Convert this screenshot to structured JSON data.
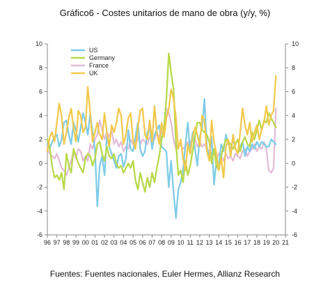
{
  "title": "Gráfico6 - Costes unitarios de mano de obra (y/y, %)",
  "source": "Fuentes: Fuentes nacionales, Euler Hermes, Allianz Research",
  "chart_data": {
    "type": "line",
    "x_tick_labels": [
      "96",
      "97",
      "98",
      "99",
      "00",
      "01",
      "02",
      "03",
      "04",
      "05",
      "06",
      "07",
      "08",
      "09",
      "10",
      "11",
      "12",
      "13",
      "14",
      "15",
      "16",
      "17",
      "18",
      "19",
      "20",
      "21"
    ],
    "y_ticks": [
      10,
      8,
      6,
      4,
      2,
      0,
      -2,
      -4,
      -6
    ],
    "ylim": [
      -6,
      10
    ],
    "xlim": [
      1996,
      2021
    ],
    "grid": false,
    "legend_position": "top-left",
    "series": [
      {
        "name": "US",
        "color": "#7FCCE8",
        "x": [
          1996,
          1996.25,
          1996.5,
          1996.75,
          1997,
          1997.25,
          1997.5,
          1997.75,
          1998,
          1998.25,
          1998.5,
          1998.75,
          1999,
          1999.25,
          1999.5,
          1999.75,
          2000,
          2000.25,
          2000.5,
          2000.75,
          2001,
          2001.25,
          2001.5,
          2001.75,
          2002,
          2002.25,
          2002.5,
          2002.75,
          2003,
          2003.25,
          2003.5,
          2003.75,
          2004,
          2004.25,
          2004.5,
          2004.75,
          2005,
          2005.25,
          2005.5,
          2005.75,
          2006,
          2006.25,
          2006.5,
          2006.75,
          2007,
          2007.25,
          2007.5,
          2007.75,
          2008,
          2008.25,
          2008.5,
          2008.75,
          2009,
          2009.25,
          2009.5,
          2009.75,
          2010,
          2010.25,
          2010.5,
          2010.75,
          2011,
          2011.25,
          2011.5,
          2011.75,
          2012,
          2012.25,
          2012.5,
          2012.75,
          2013,
          2013.25,
          2013.5,
          2013.75,
          2014,
          2014.25,
          2014.5,
          2014.75,
          2015,
          2015.25,
          2015.5,
          2015.75,
          2016,
          2016.25,
          2016.5,
          2016.75,
          2017,
          2017.25,
          2017.5,
          2017.75,
          2018,
          2018.25,
          2018.5,
          2018.75,
          2019,
          2019.25,
          2019.5,
          2019.75,
          2020
        ],
        "y": [
          1.6,
          1.2,
          1.8,
          2.2,
          2.4,
          1.4,
          2.0,
          3.4,
          3.6,
          2.4,
          1.6,
          3.4,
          2.8,
          1.8,
          3.0,
          4.2,
          3.4,
          2.4,
          4.2,
          2.6,
          1.2,
          -3.6,
          -0.2,
          0.6,
          -1.0,
          2.2,
          1.4,
          0.8,
          0.2,
          -0.4,
          0.6,
          0.8,
          -0.3,
          0.4,
          2.8,
          1.2,
          1.0,
          2.2,
          3.4,
          1.2,
          0.6,
          1.0,
          2.6,
          3.0,
          1.2,
          2.4,
          2.8,
          3.2,
          1.4,
          1.2,
          1.0,
          -2.0,
          0.2,
          -2.4,
          -4.6,
          -2.2,
          -1.6,
          -0.6,
          1.6,
          3.4,
          1.0,
          2.6,
          1.2,
          -0.2,
          2.2,
          3.0,
          5.4,
          1.4,
          0.4,
          2.2,
          -1.8,
          0.2,
          -0.2,
          1.6,
          1.0,
          2.4,
          1.6,
          1.2,
          2.0,
          1.2,
          0.8,
          1.4,
          1.8,
          0.6,
          1.4,
          1.0,
          1.6,
          1.2,
          1.8,
          1.4,
          1.8,
          1.6,
          1.4,
          1.4,
          2.0,
          1.8,
          1.6
        ]
      },
      {
        "name": "Germany",
        "color": "#B8D94A",
        "x": [
          1996,
          1996.25,
          1996.5,
          1996.75,
          1997,
          1997.25,
          1997.5,
          1997.75,
          1998,
          1998.25,
          1998.5,
          1998.75,
          1999,
          1999.25,
          1999.5,
          1999.75,
          2000,
          2000.25,
          2000.5,
          2000.75,
          2001,
          2001.25,
          2001.5,
          2001.75,
          2002,
          2002.25,
          2002.5,
          2002.75,
          2003,
          2003.25,
          2003.5,
          2003.75,
          2004,
          2004.25,
          2004.5,
          2004.75,
          2005,
          2005.25,
          2005.5,
          2005.75,
          2006,
          2006.25,
          2006.5,
          2006.75,
          2007,
          2007.25,
          2007.5,
          2007.75,
          2008,
          2008.25,
          2008.5,
          2008.75,
          2009,
          2009.25,
          2009.5,
          2009.75,
          2010,
          2010.25,
          2010.5,
          2010.75,
          2011,
          2011.25,
          2011.5,
          2011.75,
          2012,
          2012.25,
          2012.5,
          2012.75,
          2013,
          2013.25,
          2013.5,
          2013.75,
          2014,
          2014.25,
          2014.5,
          2014.75,
          2015,
          2015.25,
          2015.5,
          2015.75,
          2016,
          2016.25,
          2016.5,
          2016.75,
          2017,
          2017.25,
          2017.5,
          2017.75,
          2018,
          2018.25,
          2018.5,
          2018.75,
          2019,
          2019.25,
          2019.5,
          2019.75,
          2020
        ],
        "y": [
          2.0,
          1.4,
          -0.2,
          -1.2,
          -1.0,
          -1.4,
          -0.8,
          -2.2,
          0.8,
          -0.2,
          -0.8,
          1.2,
          0.6,
          0.0,
          -0.4,
          -0.8,
          0.4,
          0.8,
          0.6,
          -0.2,
          0.4,
          1.6,
          1.8,
          0.8,
          0.2,
          1.4,
          0.6,
          0.4,
          0.8,
          0.0,
          -0.4,
          -0.2,
          -0.8,
          -0.4,
          0.0,
          -0.4,
          0.2,
          -1.4,
          -2.2,
          -0.8,
          -1.6,
          -2.4,
          -1.2,
          -2.0,
          -0.8,
          -1.6,
          -0.4,
          0.6,
          2.0,
          3.0,
          5.4,
          9.2,
          7.6,
          6.2,
          1.8,
          -1.0,
          -0.6,
          -1.6,
          0.2,
          -1.0,
          -0.2,
          1.0,
          2.2,
          3.4,
          3.4,
          2.8,
          2.6,
          2.4,
          1.8,
          0.0,
          1.2,
          -0.2,
          -0.6,
          0.6,
          1.4,
          2.0,
          1.8,
          1.6,
          1.2,
          1.6,
          2.0,
          1.0,
          1.8,
          2.2,
          1.6,
          1.4,
          2.6,
          2.0,
          2.8,
          3.6,
          2.8,
          3.6,
          3.4,
          4.2,
          3.8,
          3.4,
          3.0
        ]
      },
      {
        "name": "France",
        "color": "#E2BDD6",
        "x": [
          1996,
          1996.25,
          1996.5,
          1996.75,
          1997,
          1997.25,
          1997.5,
          1997.75,
          1998,
          1998.25,
          1998.5,
          1998.75,
          1999,
          1999.25,
          1999.5,
          1999.75,
          2000,
          2000.25,
          2000.5,
          2000.75,
          2001,
          2001.25,
          2001.5,
          2001.75,
          2002,
          2002.25,
          2002.5,
          2002.75,
          2003,
          2003.25,
          2003.5,
          2003.75,
          2004,
          2004.25,
          2004.5,
          2004.75,
          2005,
          2005.25,
          2005.5,
          2005.75,
          2006,
          2006.25,
          2006.5,
          2006.75,
          2007,
          2007.25,
          2007.5,
          2007.75,
          2008,
          2008.25,
          2008.5,
          2008.75,
          2009,
          2009.25,
          2009.5,
          2009.75,
          2010,
          2010.25,
          2010.5,
          2010.75,
          2011,
          2011.25,
          2011.5,
          2011.75,
          2012,
          2012.25,
          2012.5,
          2012.75,
          2013,
          2013.25,
          2013.5,
          2013.75,
          2014,
          2014.25,
          2014.5,
          2014.75,
          2015,
          2015.25,
          2015.5,
          2015.75,
          2016,
          2016.25,
          2016.5,
          2016.75,
          2017,
          2017.25,
          2017.5,
          2017.75,
          2018,
          2018.25,
          2018.5,
          2018.75,
          2019,
          2019.25,
          2019.5,
          2019.75,
          2020
        ],
        "y": [
          1.2,
          0.8,
          0.6,
          0.4,
          0.8,
          0.2,
          -0.4,
          -0.6,
          -1.0,
          -0.4,
          0.2,
          1.0,
          0.4,
          1.2,
          1.0,
          0.2,
          0.6,
          0.2,
          1.6,
          1.2,
          2.0,
          2.4,
          3.6,
          2.8,
          2.0,
          2.6,
          2.2,
          2.8,
          1.6,
          2.0,
          1.4,
          1.8,
          1.0,
          1.4,
          1.2,
          2.0,
          1.6,
          1.4,
          2.2,
          1.6,
          2.0,
          1.8,
          1.6,
          2.2,
          1.8,
          2.0,
          2.6,
          2.2,
          2.6,
          3.0,
          4.6,
          4.2,
          3.4,
          2.0,
          1.2,
          1.4,
          1.6,
          1.2,
          1.4,
          1.8,
          1.6,
          2.2,
          2.0,
          1.4,
          1.8,
          1.4,
          1.6,
          1.2,
          1.0,
          0.8,
          1.2,
          0.4,
          0.8,
          0.6,
          0.2,
          0.8,
          0.4,
          0.6,
          0.2,
          0.8,
          0.6,
          0.4,
          1.0,
          1.2,
          0.6,
          1.0,
          1.2,
          1.6,
          1.0,
          1.4,
          1.2,
          1.8,
          1.2,
          -0.6,
          -0.8,
          -0.4,
          4.6
        ]
      },
      {
        "name": "UK",
        "color": "#F2C94C",
        "x": [
          1996,
          1996.25,
          1996.5,
          1996.75,
          1997,
          1997.25,
          1997.5,
          1997.75,
          1998,
          1998.25,
          1998.5,
          1998.75,
          1999,
          1999.25,
          1999.5,
          1999.75,
          2000,
          2000.25,
          2000.5,
          2000.75,
          2001,
          2001.25,
          2001.5,
          2001.75,
          2002,
          2002.25,
          2002.5,
          2002.75,
          2003,
          2003.25,
          2003.5,
          2003.75,
          2004,
          2004.25,
          2004.5,
          2004.75,
          2005,
          2005.25,
          2005.5,
          2005.75,
          2006,
          2006.25,
          2006.5,
          2006.75,
          2007,
          2007.25,
          2007.5,
          2007.75,
          2008,
          2008.25,
          2008.5,
          2008.75,
          2009,
          2009.25,
          2009.5,
          2009.75,
          2010,
          2010.25,
          2010.5,
          2010.75,
          2011,
          2011.25,
          2011.5,
          2011.75,
          2012,
          2012.25,
          2012.5,
          2012.75,
          2013,
          2013.25,
          2013.5,
          2013.75,
          2014,
          2014.25,
          2014.5,
          2014.75,
          2015,
          2015.25,
          2015.5,
          2015.75,
          2016,
          2016.25,
          2016.5,
          2016.75,
          2017,
          2017.25,
          2017.5,
          2017.75,
          2018,
          2018.25,
          2018.5,
          2018.75,
          2019,
          2019.25,
          2019.5,
          2019.75,
          2020
        ],
        "y": [
          1.0,
          2.2,
          2.6,
          1.8,
          3.4,
          5.0,
          4.0,
          1.6,
          2.6,
          3.8,
          4.6,
          3.0,
          1.8,
          4.4,
          4.0,
          2.6,
          3.0,
          6.4,
          4.2,
          1.8,
          2.6,
          3.4,
          2.4,
          2.0,
          4.2,
          2.6,
          1.4,
          3.2,
          2.6,
          3.4,
          4.6,
          4.0,
          1.6,
          2.4,
          3.8,
          4.2,
          2.0,
          1.2,
          3.0,
          4.4,
          4.6,
          2.4,
          2.0,
          3.6,
          1.8,
          4.8,
          2.6,
          1.6,
          3.4,
          2.2,
          3.8,
          4.6,
          6.2,
          5.4,
          3.8,
          1.2,
          2.0,
          0.4,
          -0.6,
          1.6,
          0.8,
          2.2,
          3.0,
          2.4,
          1.4,
          4.0,
          3.6,
          1.0,
          0.2,
          3.6,
          1.8,
          0.8,
          -0.6,
          0.4,
          -1.2,
          1.4,
          2.0,
          0.6,
          2.4,
          1.2,
          0.8,
          2.6,
          4.6,
          3.2,
          2.4,
          3.4,
          1.8,
          2.6,
          3.2,
          2.0,
          2.8,
          3.4,
          4.8,
          3.2,
          4.0,
          4.4,
          7.3
        ]
      }
    ]
  }
}
